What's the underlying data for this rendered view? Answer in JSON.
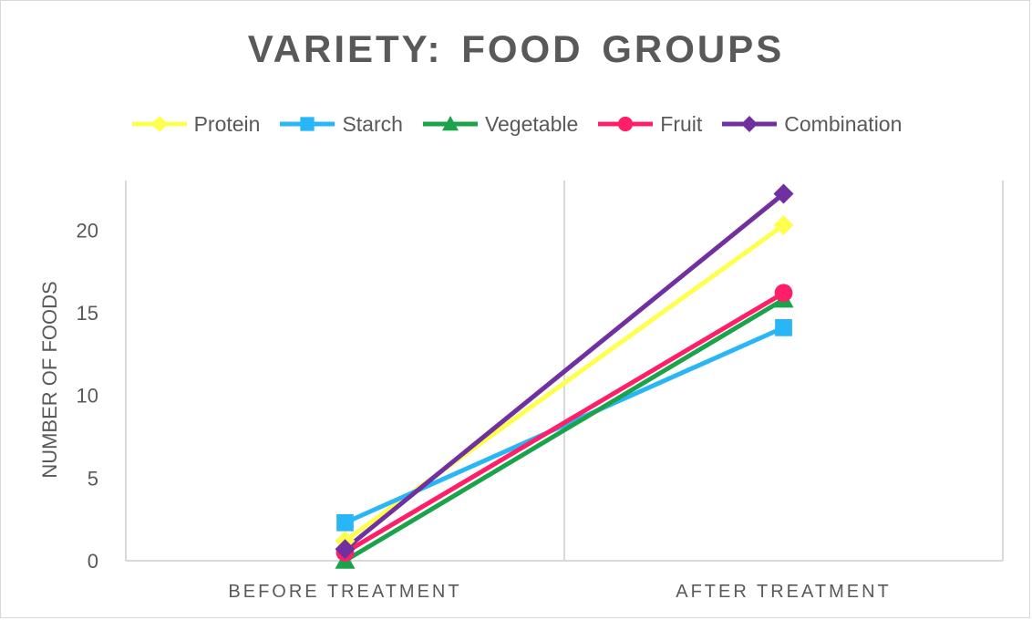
{
  "chart_data": {
    "type": "line",
    "title": "VARIETY:  FOOD GROUPS",
    "xlabel": "",
    "ylabel": "NUMBER OF FOODS",
    "categories": [
      "BEFORE TREATMENT",
      "AFTER TREATMENT"
    ],
    "ylim": [
      0,
      23
    ],
    "yticks": [
      0,
      5,
      10,
      15,
      20
    ],
    "grid": "vertical category gridlines",
    "legend_position": "top",
    "series": [
      {
        "name": "Protein",
        "color": "#ffff4d",
        "marker": "diamond",
        "values": [
          1.2,
          20.3
        ]
      },
      {
        "name": "Starch",
        "color": "#29b6f6",
        "marker": "square",
        "values": [
          2.3,
          14.1
        ]
      },
      {
        "name": "Vegetable",
        "color": "#1aa34a",
        "marker": "triangle",
        "values": [
          0,
          15.8
        ]
      },
      {
        "name": "Fruit",
        "color": "#ff1f68",
        "marker": "circle",
        "values": [
          0.5,
          16.2
        ]
      },
      {
        "name": "Combination",
        "color": "#7030a0",
        "marker": "diamond",
        "values": [
          0.7,
          22.2
        ]
      }
    ]
  }
}
